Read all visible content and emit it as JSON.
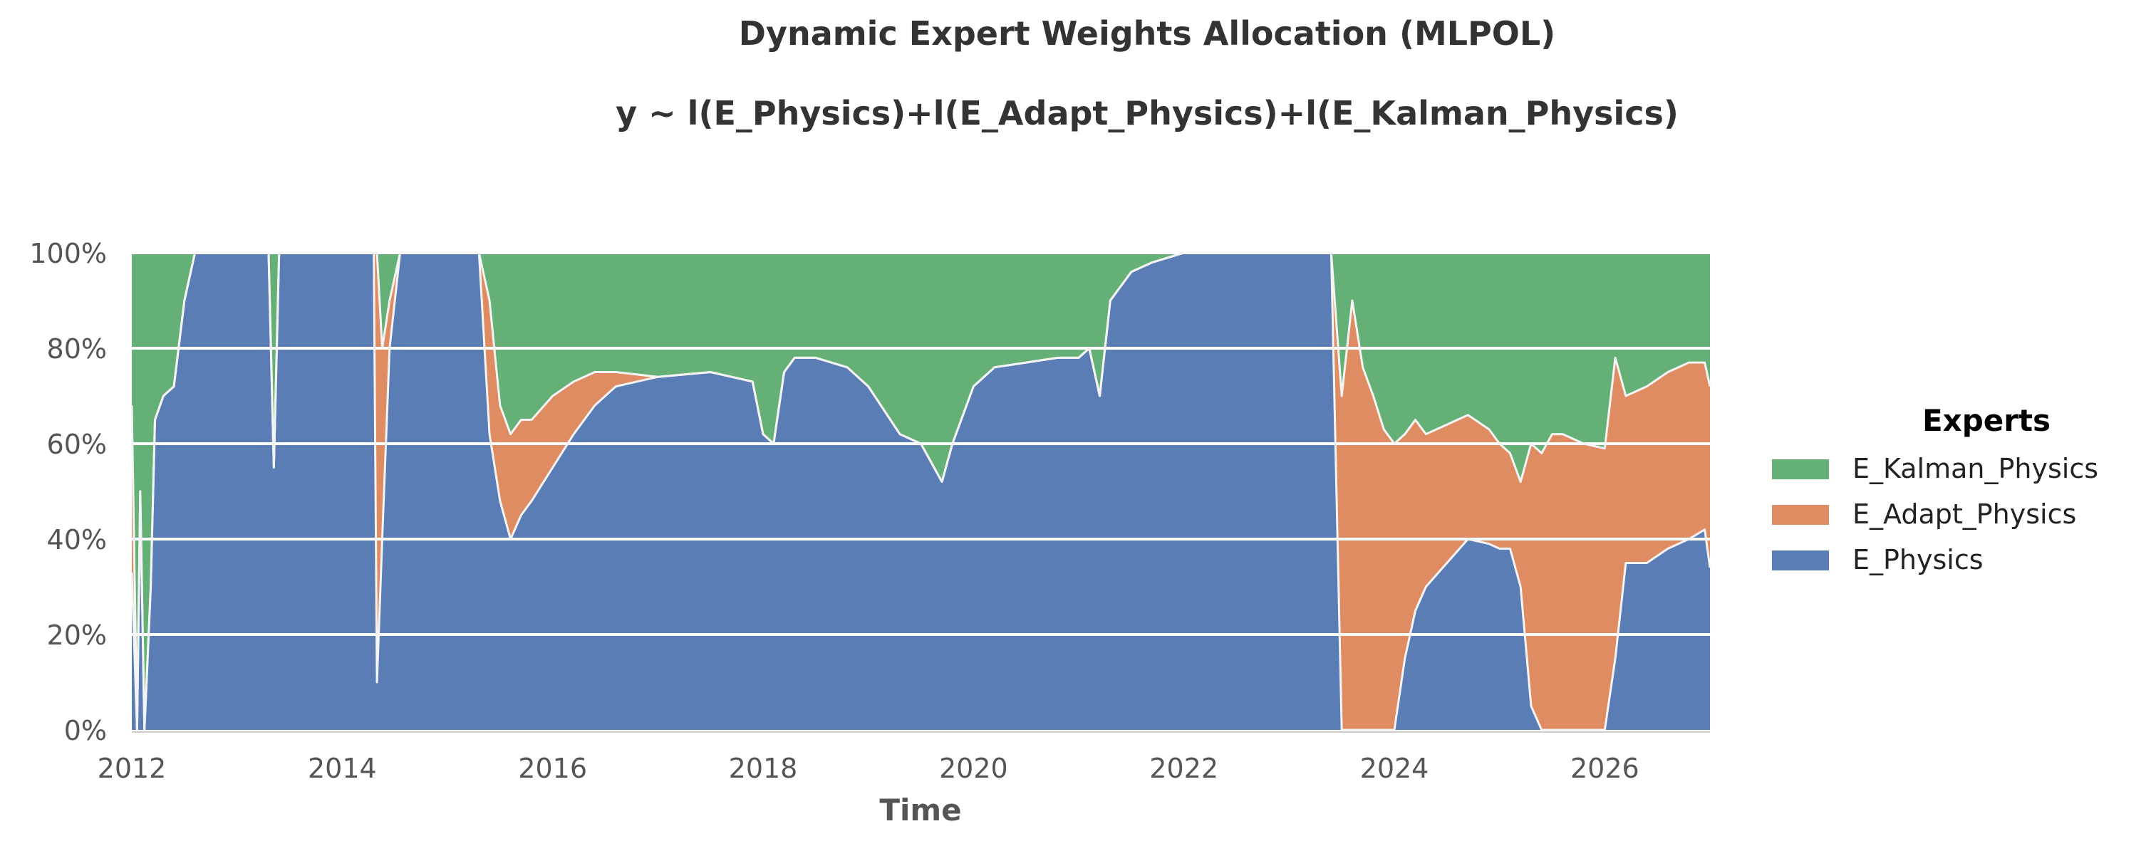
{
  "chart_data": {
    "type": "area",
    "stacked": true,
    "title": "Dynamic Expert Weights Allocation (MLPOL)",
    "subtitle": "y ~ l(E_Physics)+l(E_Adapt_Physics)+l(E_Kalman_Physics)",
    "xlabel": "Time",
    "ylabel": "",
    "xlim": [
      2012.0,
      2027.0
    ],
    "ylim": [
      0,
      100
    ],
    "x_ticks": [
      2012,
      2014,
      2016,
      2018,
      2020,
      2022,
      2024,
      2026
    ],
    "x_tick_labels": [
      "2012",
      "2014",
      "2016",
      "2018",
      "2020",
      "2022",
      "2024",
      "2026"
    ],
    "y_ticks": [
      0,
      20,
      40,
      60,
      80,
      100
    ],
    "y_tick_labels": [
      "0%",
      "20%",
      "40%",
      "60%",
      "80%",
      "100%"
    ],
    "grid": "horizontal",
    "legend": {
      "title": "Experts",
      "placement": "right",
      "entries": [
        "E_Kalman_Physics",
        "E_Adapt_Physics",
        "E_Physics"
      ]
    },
    "x": [
      2012.0,
      2012.05,
      2012.08,
      2012.12,
      2012.18,
      2012.22,
      2012.3,
      2012.4,
      2012.5,
      2012.6,
      2012.75,
      2013.0,
      2013.3,
      2013.35,
      2013.4,
      2013.8,
      2014.0,
      2014.3,
      2014.33,
      2014.38,
      2014.45,
      2014.55,
      2014.7,
      2015.0,
      2015.3,
      2015.4,
      2015.5,
      2015.6,
      2015.7,
      2015.8,
      2016.0,
      2016.2,
      2016.4,
      2016.6,
      2017.0,
      2017.5,
      2017.9,
      2018.0,
      2018.1,
      2018.2,
      2018.3,
      2018.5,
      2018.8,
      2019.0,
      2019.3,
      2019.5,
      2019.7,
      2019.8,
      2020.0,
      2020.2,
      2020.5,
      2020.8,
      2021.0,
      2021.1,
      2021.2,
      2021.3,
      2021.5,
      2021.7,
      2022.0,
      2022.5,
      2023.0,
      2023.4,
      2023.5,
      2023.6,
      2023.7,
      2023.8,
      2023.9,
      2024.0,
      2024.1,
      2024.2,
      2024.3,
      2024.5,
      2024.7,
      2024.9,
      2025.0,
      2025.1,
      2025.2,
      2025.3,
      2025.4,
      2025.5,
      2025.6,
      2025.8,
      2026.0,
      2026.1,
      2026.2,
      2026.4,
      2026.6,
      2026.8,
      2026.95,
      2027.0
    ],
    "series": [
      {
        "name": "E_Physics",
        "color": "#5b7db5",
        "values": [
          33,
          0,
          50,
          0,
          30,
          65,
          70,
          72,
          90,
          100,
          100,
          100,
          100,
          55,
          100,
          100,
          100,
          100,
          10,
          40,
          80,
          100,
          100,
          100,
          100,
          62,
          48,
          40,
          45,
          48,
          55,
          62,
          68,
          72,
          74,
          75,
          73,
          62,
          60,
          75,
          78,
          78,
          76,
          72,
          62,
          60,
          52,
          60,
          72,
          76,
          77,
          78,
          78,
          80,
          70,
          90,
          96,
          98,
          100,
          100,
          100,
          100,
          0,
          0,
          0,
          0,
          0,
          0,
          15,
          25,
          30,
          35,
          40,
          39,
          38,
          38,
          30,
          5,
          0,
          0,
          0,
          0,
          0,
          15,
          35,
          35,
          38,
          40,
          42,
          34
        ]
      },
      {
        "name": "E_Adapt_Physics",
        "color": "#e08c63",
        "values": [
          35,
          0,
          0,
          0,
          0,
          0,
          0,
          0,
          0,
          0,
          0,
          0,
          0,
          0,
          0,
          0,
          0,
          0,
          90,
          40,
          10,
          0,
          0,
          0,
          0,
          28,
          20,
          22,
          20,
          17,
          15,
          11,
          7,
          3,
          0,
          0,
          0,
          0,
          0,
          0,
          0,
          0,
          0,
          0,
          0,
          0,
          0,
          0,
          0,
          0,
          0,
          0,
          0,
          0,
          0,
          0,
          0,
          0,
          0,
          0,
          0,
          0,
          70,
          90,
          76,
          70,
          63,
          60,
          47,
          40,
          32,
          29,
          26,
          24,
          22,
          20,
          22,
          55,
          58,
          62,
          62,
          60,
          59,
          63,
          35,
          37,
          37,
          37,
          35,
          38
        ]
      },
      {
        "name": "E_Kalman_Physics",
        "color": "#65b077",
        "values": [
          32,
          100,
          50,
          100,
          70,
          35,
          30,
          28,
          10,
          0,
          0,
          0,
          0,
          45,
          0,
          0,
          0,
          0,
          0,
          20,
          10,
          0,
          0,
          0,
          0,
          10,
          32,
          38,
          35,
          35,
          30,
          27,
          25,
          25,
          26,
          25,
          27,
          38,
          40,
          25,
          22,
          22,
          24,
          28,
          38,
          40,
          48,
          40,
          28,
          24,
          23,
          22,
          22,
          20,
          30,
          10,
          4,
          2,
          0,
          0,
          0,
          0,
          30,
          10,
          24,
          30,
          37,
          40,
          38,
          35,
          38,
          36,
          34,
          37,
          40,
          42,
          48,
          40,
          42,
          38,
          38,
          40,
          41,
          22,
          30,
          28,
          25,
          23,
          23,
          28
        ]
      }
    ]
  }
}
